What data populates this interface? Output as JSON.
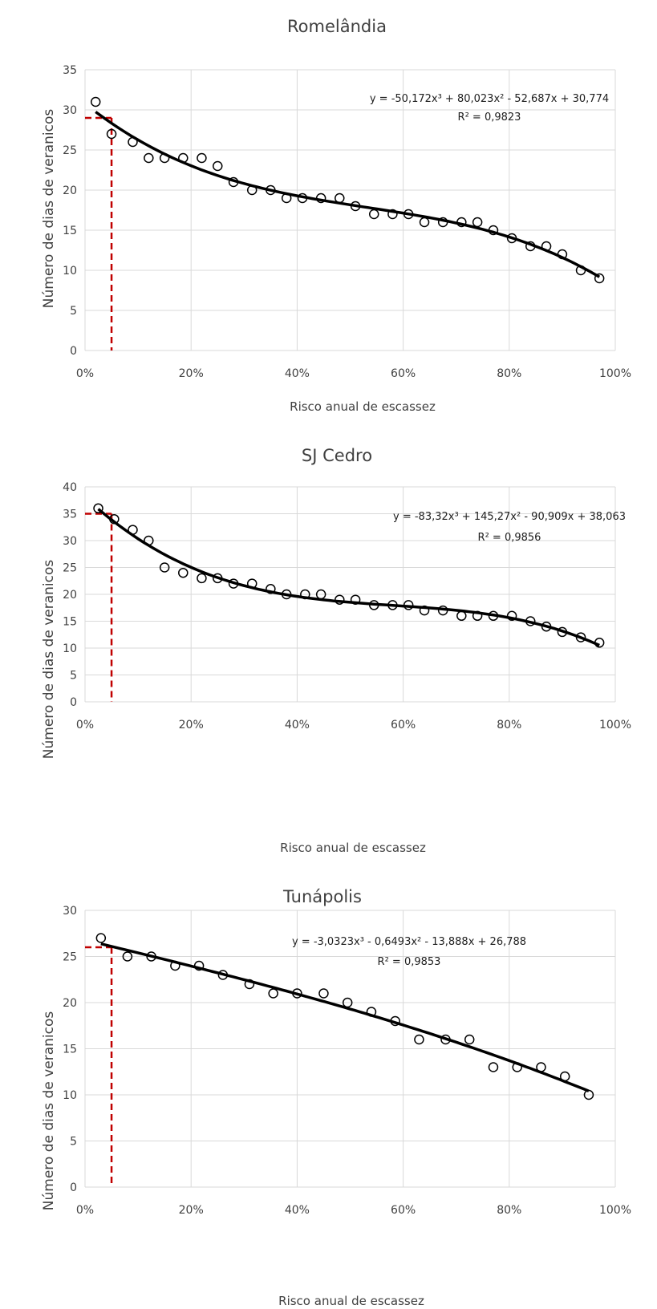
{
  "chart_data": [
    {
      "type": "scatter",
      "title": "Romelândia",
      "xlabel": "Risco anual de escassez",
      "ylabel": "Número de dias de veranicos",
      "xlim": [
        0,
        100
      ],
      "ylim": [
        0,
        35
      ],
      "x_ticks": [
        "0%",
        "20%",
        "40%",
        "60%",
        "80%",
        "100%"
      ],
      "y_ticks": [
        "0",
        "5",
        "10",
        "15",
        "20",
        "25",
        "30",
        "35"
      ],
      "grid": true,
      "trendline": {
        "type": "polynomial",
        "equation": "y = -50,172x³ + 80,023x² - 52,687x + 30,774",
        "r2": "R² = 0,9823",
        "coefficients": [
          -50.172,
          80.023,
          -52.687,
          30.774
        ],
        "x_range": [
          2,
          97
        ]
      },
      "reference": {
        "x": 5,
        "y": 29
      },
      "series": [
        {
          "x": [
            2,
            5,
            9,
            12,
            15,
            18.5,
            22,
            25,
            28,
            31.5,
            35,
            38,
            41,
            44.5,
            48,
            51,
            54.5,
            58,
            61,
            64,
            67.5,
            71,
            74,
            77,
            80.5,
            84,
            87,
            90,
            93.5,
            97
          ],
          "y": [
            31,
            27,
            26,
            24,
            24,
            24,
            24,
            23,
            21,
            20,
            20,
            19,
            19,
            19,
            19,
            18,
            17,
            17,
            17,
            16,
            16,
            16,
            16,
            15,
            14,
            13,
            13,
            12,
            10,
            9
          ]
        }
      ]
    },
    {
      "type": "scatter",
      "title": "SJ Cedro",
      "xlabel": "Risco anual de escassez",
      "ylabel": "Número de dias de veranicos",
      "xlim": [
        0,
        100
      ],
      "ylim": [
        0,
        40
      ],
      "x_ticks": [
        "0%",
        "20%",
        "40%",
        "60%",
        "80%",
        "100%"
      ],
      "y_ticks": [
        "0",
        "5",
        "10",
        "15",
        "20",
        "25",
        "30",
        "35",
        "40"
      ],
      "grid": true,
      "trendline": {
        "type": "polynomial",
        "equation": "y = -83,32x³ + 145,27x² - 90,909x + 38,063",
        "r2": "R² = 0,9856",
        "coefficients": [
          -83.32,
          145.27,
          -90.909,
          38.063
        ],
        "x_range": [
          2.5,
          97
        ]
      },
      "reference": {
        "x": 5,
        "y": 35
      },
      "series": [
        {
          "x": [
            2.5,
            5.5,
            9,
            12,
            15,
            18.5,
            22,
            25,
            28,
            31.5,
            35,
            38,
            41.5,
            44.5,
            48,
            51,
            54.5,
            58,
            61,
            64,
            67.5,
            71,
            74,
            77,
            80.5,
            84,
            87,
            90,
            93.5,
            97
          ],
          "y": [
            36,
            34,
            32,
            30,
            25,
            24,
            23,
            23,
            22,
            22,
            21,
            20,
            20,
            20,
            19,
            19,
            18,
            18,
            18,
            17,
            17,
            16,
            16,
            16,
            16,
            15,
            14,
            13,
            12,
            11
          ]
        }
      ]
    },
    {
      "type": "scatter",
      "title": "Tunápolis",
      "xlabel": "Risco anual de escassez",
      "ylabel": "Número de dias de veranicos",
      "xlim": [
        0,
        100
      ],
      "ylim": [
        0,
        30
      ],
      "x_ticks": [
        "0%",
        "20%",
        "40%",
        "60%",
        "80%",
        "100%"
      ],
      "y_ticks": [
        "0",
        "5",
        "10",
        "15",
        "20",
        "25",
        "30"
      ],
      "grid": true,
      "trendline": {
        "type": "polynomial",
        "equation": "y = -3,0323x³ - 0,6493x² - 13,888x + 26,788",
        "r2": "R² = 0,9853",
        "coefficients": [
          -3.0323,
          -0.6493,
          -13.888,
          26.788
        ],
        "x_range": [
          3,
          95
        ]
      },
      "reference": {
        "x": 5,
        "y": 26
      },
      "series": [
        {
          "x": [
            3,
            8,
            12.5,
            17,
            21.5,
            26,
            31,
            35.5,
            40,
            45,
            49.5,
            54,
            58.5,
            63,
            68,
            72.5,
            77,
            81.5,
            86,
            90.5,
            95
          ],
          "y": [
            27,
            25,
            25,
            24,
            24,
            23,
            22,
            21,
            21,
            21,
            20,
            19,
            18,
            16,
            16,
            16,
            13,
            13,
            13,
            12,
            10
          ]
        }
      ]
    }
  ],
  "colors": {
    "points": "#000000",
    "trend": "#000000",
    "reference": "#c00000",
    "grid": "#d9d9d9",
    "text": "#404040"
  }
}
